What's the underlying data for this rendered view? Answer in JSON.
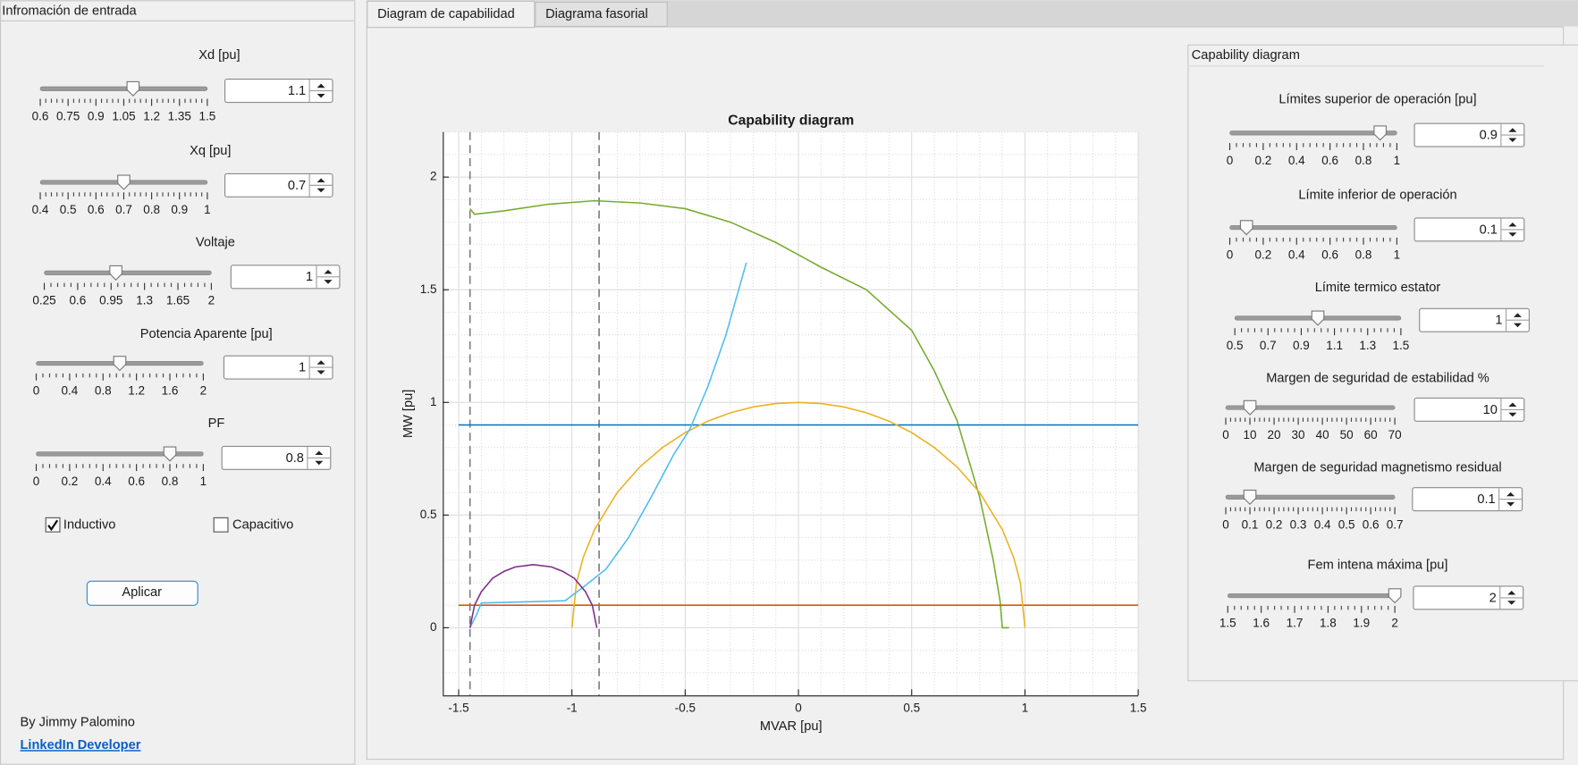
{
  "left_panel": {
    "title": "Infromación de entrada",
    "sliders": [
      {
        "label": "Xd [pu]",
        "value": 1.1,
        "ticks": [
          0.6,
          0.75,
          0.9,
          1.05,
          1.2,
          1.35,
          1.5
        ]
      },
      {
        "label": "Xq [pu]",
        "value": 0.7,
        "ticks": [
          0.4,
          0.5,
          0.6,
          0.7,
          0.8,
          0.9,
          1
        ]
      },
      {
        "label": "Voltaje",
        "value": 1,
        "ticks": [
          0.25,
          0.6,
          0.95,
          1.3,
          1.65,
          2
        ]
      },
      {
        "label": "Potencia Aparente [pu]",
        "value": 1,
        "ticks": [
          0,
          0.4,
          0.8,
          1.2,
          1.6,
          2
        ]
      },
      {
        "label": "PF",
        "value": 0.8,
        "ticks": [
          0,
          0.2,
          0.4,
          0.6,
          0.8,
          1
        ]
      }
    ],
    "checkboxes": [
      {
        "label": "Inductivo",
        "checked": true
      },
      {
        "label": "Capacitivo",
        "checked": false
      }
    ],
    "button": "Aplicar",
    "author": "By Jimmy Palomino",
    "link": "LinkedIn Developer"
  },
  "tabs": [
    "Diagram de capabilidad",
    "Diagrama fasorial"
  ],
  "right_panel": {
    "title": "Capability diagram",
    "sliders": [
      {
        "label": "Límites superior de operación [pu]",
        "value": 0.9,
        "ticks": [
          0,
          0.2,
          0.4,
          0.6,
          0.8,
          1
        ]
      },
      {
        "label": "Límite inferior de operación",
        "value": 0.1,
        "ticks": [
          0,
          0.2,
          0.4,
          0.6,
          0.8,
          1
        ]
      },
      {
        "label": "Límite termico estator",
        "value": 1,
        "ticks": [
          0.5,
          0.7,
          0.9,
          1.1,
          1.3,
          1.5
        ]
      },
      {
        "label": "Margen de seguridad de estabilidad %",
        "value": 10,
        "ticks": [
          0,
          10,
          20,
          30,
          40,
          50,
          60,
          70
        ]
      },
      {
        "label": "Margen de seguridad magnetismo residual",
        "value": 0.1,
        "ticks": [
          0,
          0.1,
          0.2,
          0.3,
          0.4,
          0.5,
          0.6,
          0.7
        ]
      },
      {
        "label": "Fem intena máxima [pu]",
        "value": 2,
        "ticks": [
          1.5,
          1.6,
          1.7,
          1.8,
          1.9,
          2
        ]
      }
    ]
  },
  "chart_data": {
    "type": "line",
    "title": "Capability diagram",
    "x_label": "MVAR [pu]",
    "y_label": "MW [pu]",
    "xlim": [
      -1.57,
      1.5
    ],
    "ylim": [
      -0.3,
      2.2
    ],
    "xticks": [
      -1.5,
      -1,
      -0.5,
      0,
      0.5,
      1,
      1.5
    ],
    "yticks": [
      0,
      0.5,
      1,
      1.5,
      2
    ],
    "grid": true,
    "minor_grid": true,
    "vlines": {
      "color": "#808080",
      "x": [
        -1.45,
        -0.88
      ]
    },
    "series": [
      {
        "color": "#77ac30",
        "x": [
          -1.45,
          -1.43,
          -1.3,
          -1.1,
          -0.9,
          -0.7,
          -0.5,
          -0.3,
          -0.1,
          0.1,
          0.3,
          0.5,
          0.6,
          0.7,
          0.8,
          0.86,
          0.89,
          0.9,
          0.93
        ],
        "values": [
          1.86,
          1.835,
          1.85,
          1.88,
          1.895,
          1.885,
          1.86,
          1.8,
          1.71,
          1.6,
          1.5,
          1.32,
          1.14,
          0.92,
          0.58,
          0.3,
          0.12,
          0,
          0
        ]
      },
      {
        "color": "#0072bd",
        "x": [
          -1.5,
          1.5
        ],
        "values": [
          0.9,
          0.9
        ]
      },
      {
        "color": "#d95319",
        "x": [
          -1.5,
          1.5
        ],
        "values": [
          0.1,
          0.1
        ]
      },
      {
        "color": "#edb120",
        "x": [
          -1,
          -0.98,
          -0.95,
          -0.9,
          -0.8,
          -0.7,
          -0.6,
          -0.5,
          -0.4,
          -0.3,
          -0.2,
          -0.1,
          0,
          0.1,
          0.2,
          0.3,
          0.4,
          0.5,
          0.6,
          0.7,
          0.8,
          0.9,
          0.95,
          0.98,
          1
        ],
        "values": [
          0,
          0.199,
          0.312,
          0.436,
          0.6,
          0.714,
          0.8,
          0.866,
          0.917,
          0.954,
          0.98,
          0.995,
          1,
          0.995,
          0.98,
          0.954,
          0.917,
          0.866,
          0.8,
          0.714,
          0.6,
          0.436,
          0.312,
          0.199,
          0
        ]
      },
      {
        "color": "#4dbeee",
        "x": [
          -1.45,
          -1.42,
          -1.4,
          -1.2,
          -1.03,
          -0.95,
          -0.85,
          -0.75,
          -0.65,
          -0.55,
          -0.48,
          -0.4,
          -0.32,
          -0.23
        ],
        "values": [
          0,
          0.06,
          0.11,
          0.115,
          0.12,
          0.18,
          0.26,
          0.4,
          0.58,
          0.77,
          0.88,
          1.07,
          1.3,
          1.62
        ]
      },
      {
        "color": "#7e2f8e",
        "x": [
          -1.45,
          -1.43,
          -1.4,
          -1.35,
          -1.3,
          -1.25,
          -1.17,
          -1.09,
          -1.04,
          -0.99,
          -0.94,
          -0.91,
          -0.89
        ],
        "values": [
          0,
          0.1,
          0.16,
          0.22,
          0.25,
          0.27,
          0.28,
          0.27,
          0.25,
          0.22,
          0.16,
          0.1,
          0
        ]
      }
    ]
  }
}
